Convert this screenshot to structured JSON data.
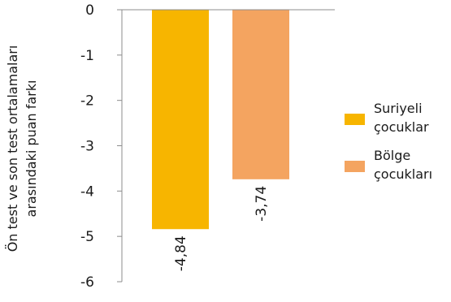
{
  "chart_data": {
    "type": "bar",
    "categories": [
      "Suriyeli çocuklar",
      "Bölge çocukları"
    ],
    "values": [
      -4.84,
      -3.74
    ],
    "data_labels": [
      "-4,84",
      "-3,74"
    ],
    "colors": [
      "#f7b500",
      "#f4a460"
    ],
    "ylabel_line1": "Ön test ve son test ortalamaları",
    "ylabel_line2": "arasındaki puan farkı",
    "ylim": [
      -6,
      0
    ],
    "yticks": [
      0,
      -1,
      -2,
      -3,
      -4,
      -5,
      -6
    ],
    "ytick_labels": [
      "0",
      "-1",
      "-2",
      "-3",
      "-4",
      "-5",
      "-6"
    ],
    "grid": false,
    "legend_position": "right",
    "legend": [
      {
        "line1": "Suriyeli",
        "line2": "çocuklar",
        "color": "#f7b500"
      },
      {
        "line1": "Bölge",
        "line2": "çocukları",
        "color": "#f4a460"
      }
    ]
  }
}
